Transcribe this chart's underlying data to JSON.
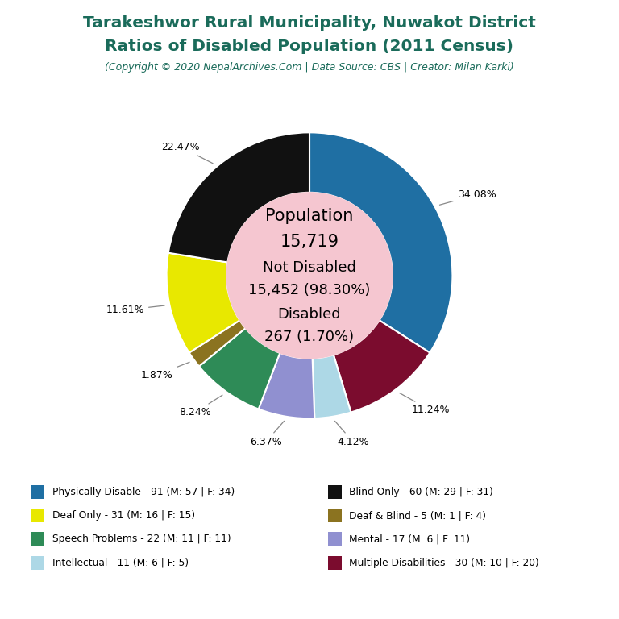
{
  "title_line1": "Tarakeshwor Rural Municipality, Nuwakot District",
  "title_line2": "Ratios of Disabled Population (2011 Census)",
  "subtitle": "(Copyright © 2020 NepalArchives.Com | Data Source: CBS | Creator: Milan Karki)",
  "title_color": "#1a6b5a",
  "subtitle_color": "#1a6b5a",
  "center_bg": "#f5c6d0",
  "slices": [
    {
      "label": "Physically Disable - 91 (M: 57 | F: 34)",
      "value": 91,
      "pct": "34.08%",
      "color": "#1f6fa3"
    },
    {
      "label": "Multiple Disabilities - 30 (M: 10 | F: 20)",
      "value": 30,
      "pct": "11.24%",
      "color": "#7b0c2e"
    },
    {
      "label": "Intellectual - 11 (M: 6 | F: 5)",
      "value": 11,
      "pct": "4.12%",
      "color": "#add8e6"
    },
    {
      "label": "Mental - 17 (M: 6 | F: 11)",
      "value": 17,
      "pct": "6.37%",
      "color": "#9090d0"
    },
    {
      "label": "Speech Problems - 22 (M: 11 | F: 11)",
      "value": 22,
      "pct": "8.24%",
      "color": "#2e8b57"
    },
    {
      "label": "Deaf & Blind - 5 (M: 1 | F: 4)",
      "value": 5,
      "pct": "1.87%",
      "color": "#8b7320"
    },
    {
      "label": "Deaf Only - 31 (M: 16 | F: 15)",
      "value": 31,
      "pct": "11.61%",
      "color": "#e8e800"
    },
    {
      "label": "Blind Only - 60 (M: 29 | F: 31)",
      "value": 60,
      "pct": "22.47%",
      "color": "#111111"
    }
  ],
  "legend_entries": [
    {
      "label": "Physically Disable - 91 (M: 57 | F: 34)",
      "color": "#1f6fa3"
    },
    {
      "label": "Blind Only - 60 (M: 29 | F: 31)",
      "color": "#111111"
    },
    {
      "label": "Deaf Only - 31 (M: 16 | F: 15)",
      "color": "#e8e800"
    },
    {
      "label": "Deaf & Blind - 5 (M: 1 | F: 4)",
      "color": "#8b7320"
    },
    {
      "label": "Speech Problems - 22 (M: 11 | F: 11)",
      "color": "#2e8b57"
    },
    {
      "label": "Mental - 17 (M: 6 | F: 11)",
      "color": "#9090d0"
    },
    {
      "label": "Intellectual - 11 (M: 6 | F: 5)",
      "color": "#add8e6"
    },
    {
      "label": "Multiple Disabilities - 30 (M: 10 | F: 20)",
      "color": "#7b0c2e"
    }
  ],
  "bg_color": "#ffffff",
  "center_lines": [
    {
      "text": "Population",
      "size": 15
    },
    {
      "text": "15,719",
      "size": 15
    },
    {
      "text": "",
      "size": 5
    },
    {
      "text": "Not Disabled",
      "size": 13
    },
    {
      "text": "15,452 (98.30%)",
      "size": 13
    },
    {
      "text": "",
      "size": 5
    },
    {
      "text": "Disabled",
      "size": 13
    },
    {
      "text": "267 (1.70%)",
      "size": 13
    }
  ]
}
